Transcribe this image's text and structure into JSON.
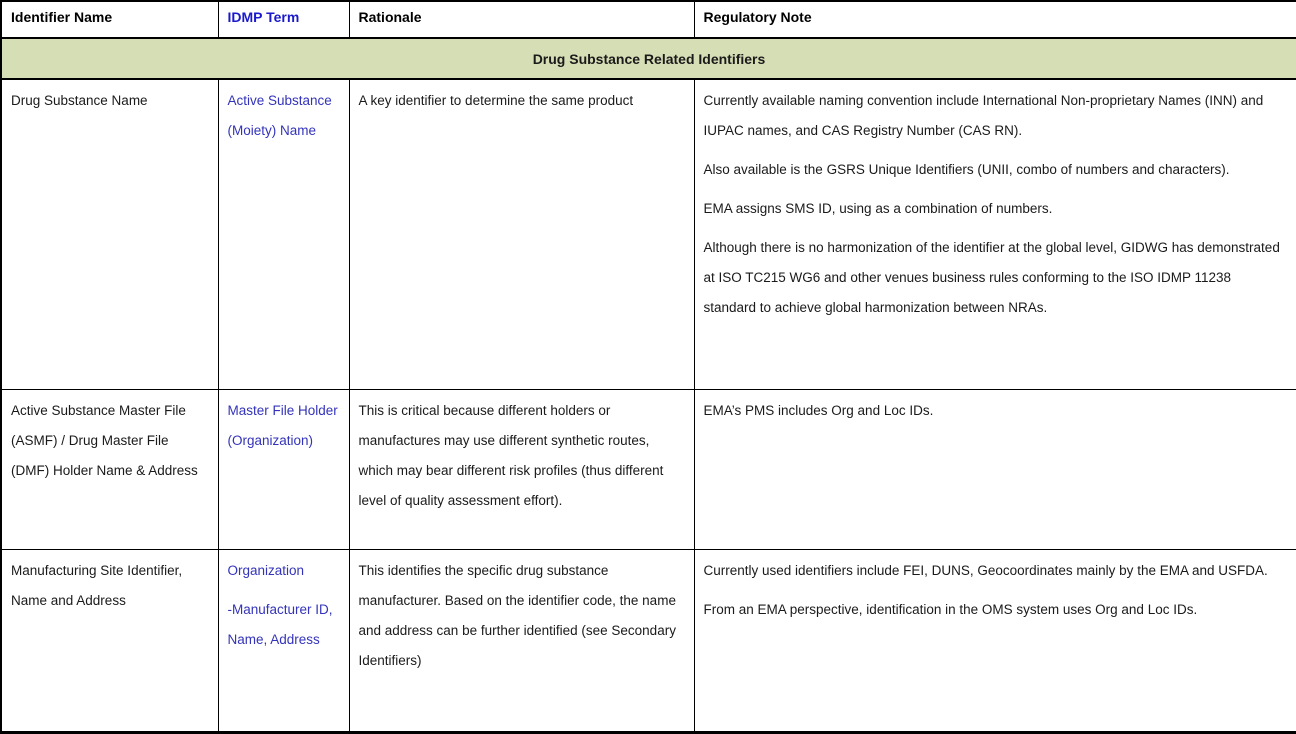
{
  "table": {
    "columns": [
      {
        "label": "Identifier Name"
      },
      {
        "label": "IDMP Term"
      },
      {
        "label": "Rationale"
      },
      {
        "label": "Regulatory Note"
      }
    ],
    "section_header": "Drug Substance Related Identifiers",
    "rows": [
      {
        "identifier_name": [
          "Drug Substance Name"
        ],
        "idmp_term": [
          "Active Substance (Moiety) Name"
        ],
        "rationale": [
          "A key identifier to determine the same product"
        ],
        "regulatory_note": [
          "Currently available naming convention include International Non-proprietary Names (INN) and IUPAC names, and CAS Registry Number (CAS RN).",
          "Also available is the GSRS Unique Identifiers (UNII, combo of numbers and characters).",
          "EMA assigns SMS ID, using as a combination of numbers.",
          "Although there is no harmonization of the identifier at the global level, GIDWG has demonstrated at ISO TC215 WG6 and other venues business rules conforming to the ISO IDMP 11238 standard to achieve global harmonization between NRAs."
        ]
      },
      {
        "identifier_name": [
          "Active Substance Master File (ASMF) / Drug Master File (DMF) Holder Name & Address"
        ],
        "idmp_term": [
          "Master File Holder (Organization)"
        ],
        "rationale": [
          "This is critical because different holders or manufactures may use different synthetic routes, which may bear different risk profiles (thus different level of quality assessment effort)."
        ],
        "regulatory_note": [
          "EMA’s PMS includes Org and Loc IDs."
        ]
      },
      {
        "identifier_name": [
          "Manufacturing Site Identifier, Name and Address"
        ],
        "idmp_term": [
          "Organization",
          "-Manufacturer ID, Name, Address"
        ],
        "rationale": [
          "This identifies the specific drug substance manufacturer. Based on the identifier code, the name and address can be further identified (see Secondary Identifiers)"
        ],
        "regulatory_note": [
          "Currently used identifiers include FEI, DUNS, Geocoordinates mainly by the EMA and USFDA.",
          "From an EMA perspective, identification in the OMS system uses Org and Loc IDs."
        ]
      }
    ],
    "colors": {
      "section_background": "#d6deb5",
      "idmp_term_text": "#3333bb",
      "idmp_header_text": "#1a1acc",
      "border": "#000000",
      "body_text": "#1a1a1a"
    }
  }
}
